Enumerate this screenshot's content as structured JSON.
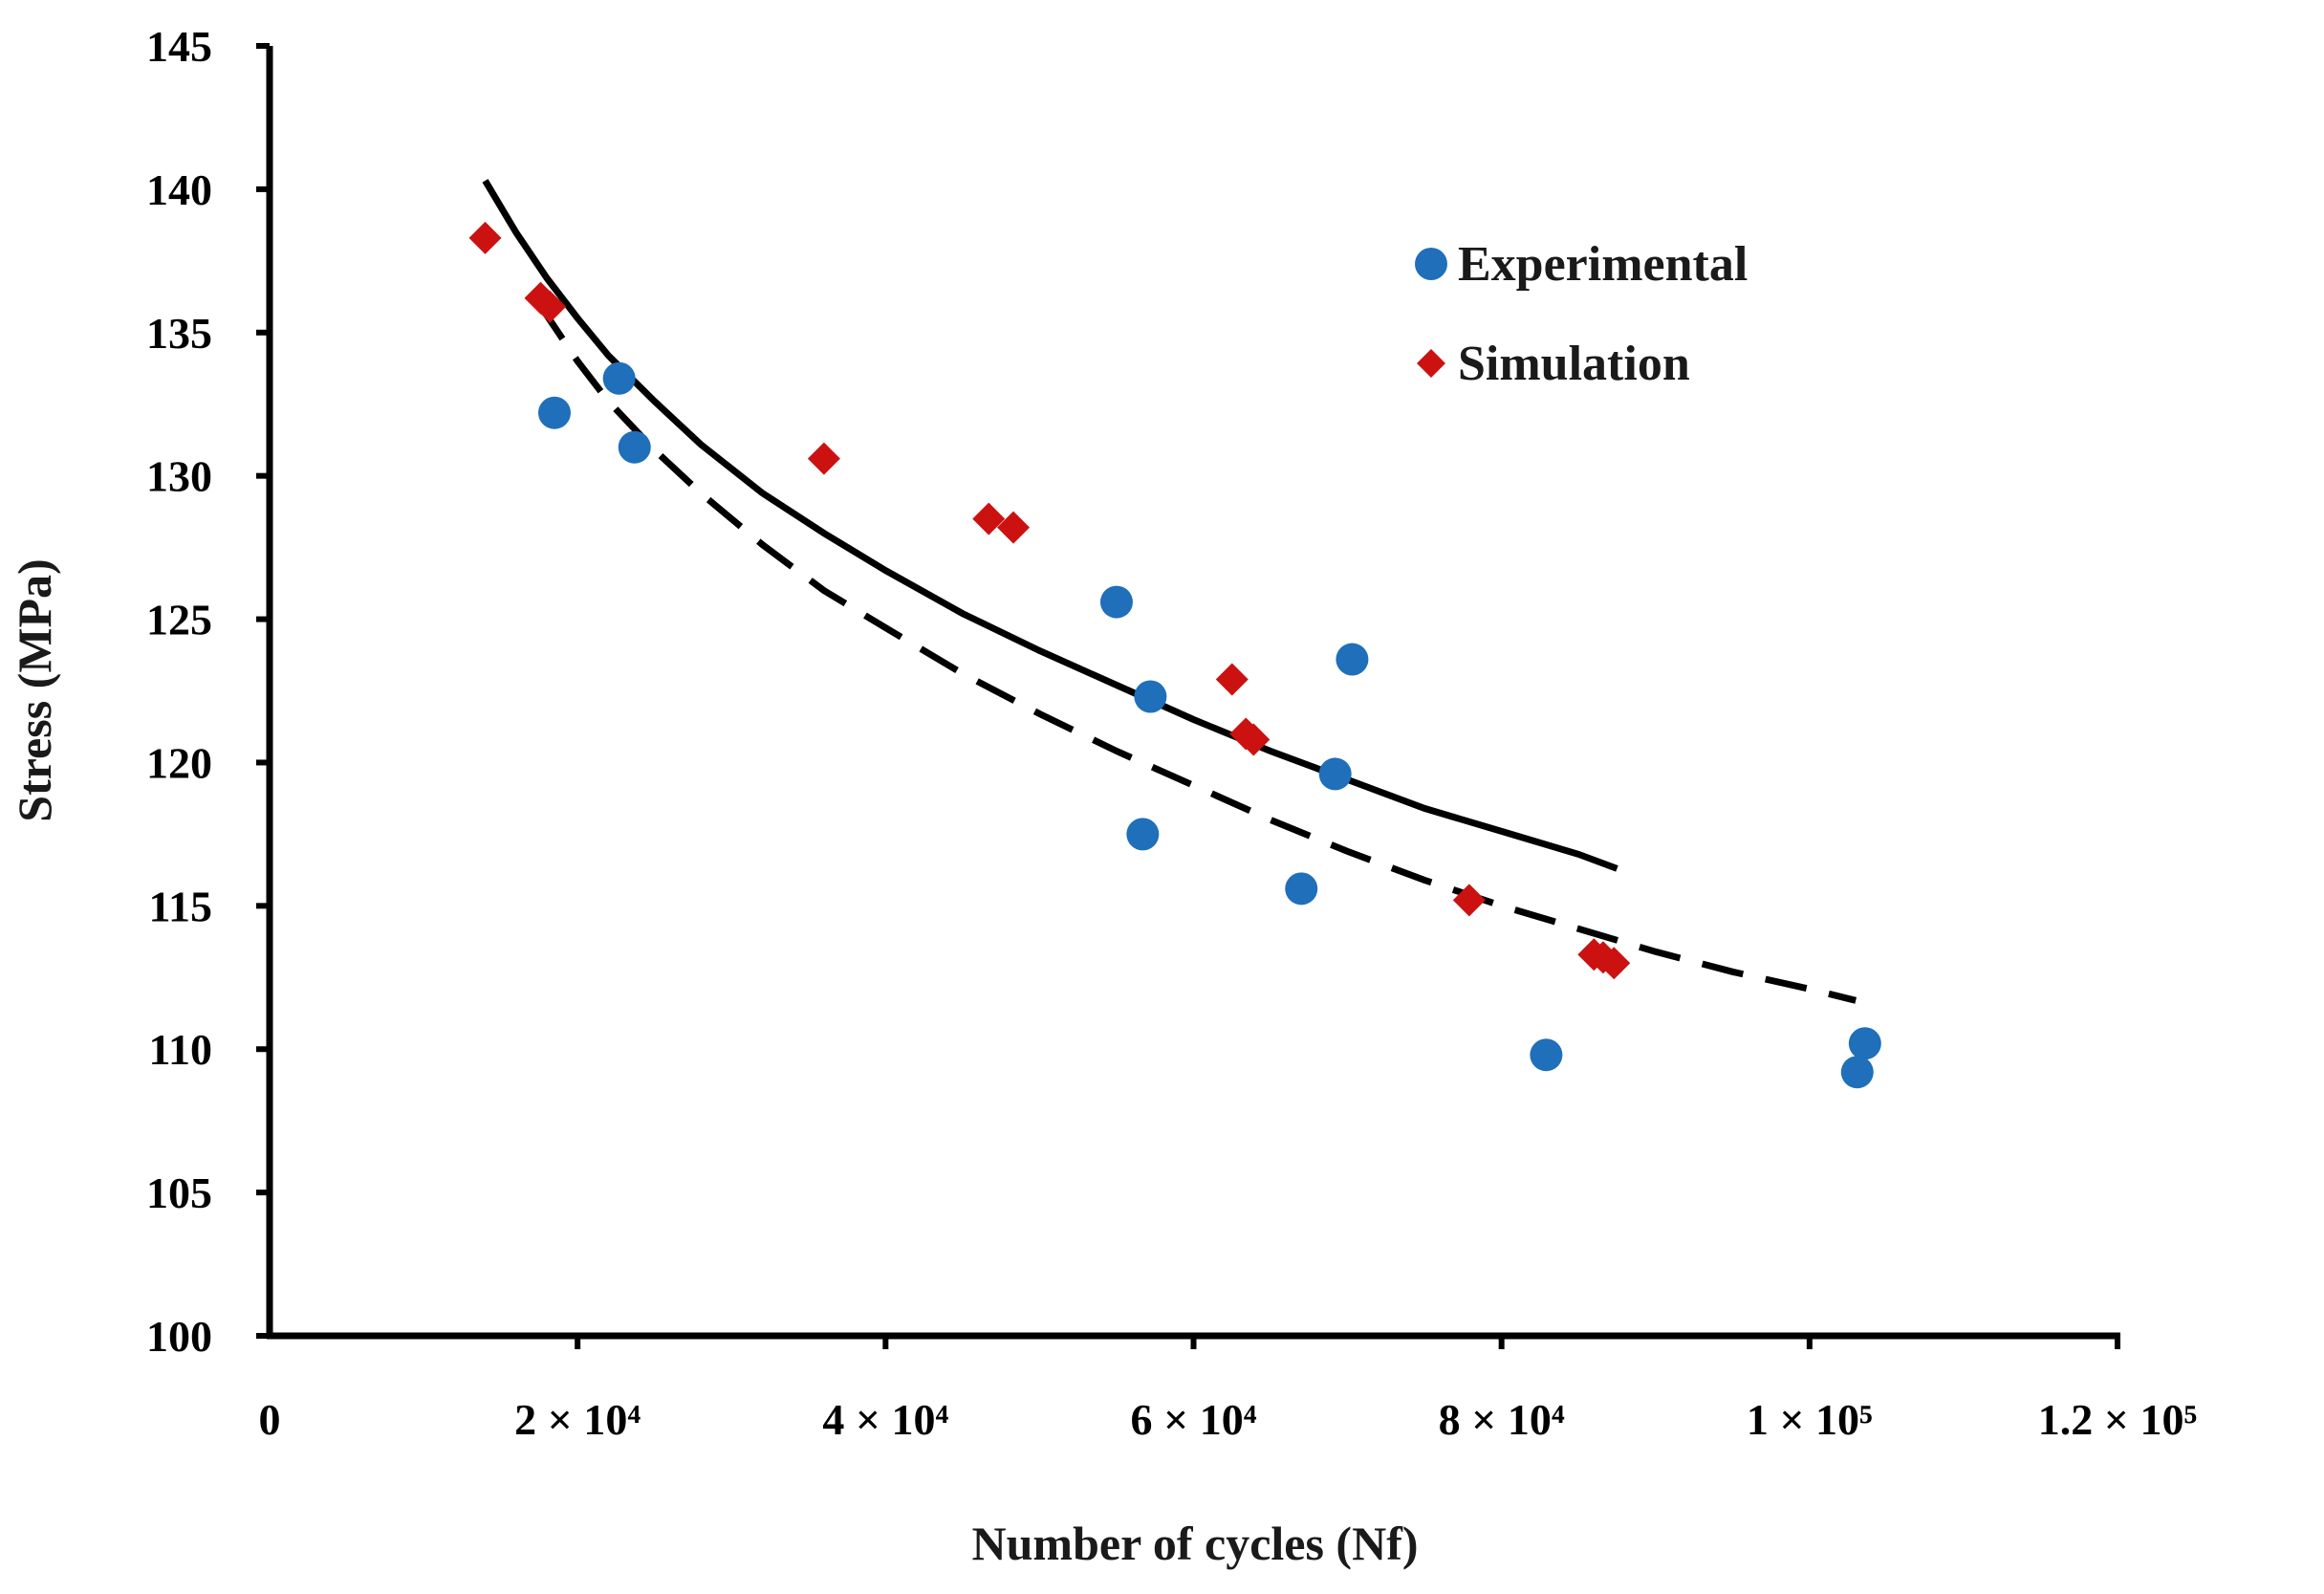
{
  "chart_data": {
    "type": "scatter",
    "xlabel": "Number of cycles (Nf)",
    "ylabel": "Stress (MPa)",
    "xlim": [
      0,
      120000
    ],
    "ylim": [
      100,
      145
    ],
    "x_ticks": [
      {
        "value": 0,
        "label": "0"
      },
      {
        "value": 20000,
        "label": "2 × 10⁴"
      },
      {
        "value": 40000,
        "label": "4 × 10⁴"
      },
      {
        "value": 60000,
        "label": "6 × 10⁴"
      },
      {
        "value": 80000,
        "label": "8 × 10⁴"
      },
      {
        "value": 100000,
        "label": "1 × 10⁵"
      },
      {
        "value": 120000,
        "label": "1.2 × 10⁵"
      }
    ],
    "y_ticks": [
      {
        "value": 100,
        "label": "100"
      },
      {
        "value": 105,
        "label": "105"
      },
      {
        "value": 110,
        "label": "110"
      },
      {
        "value": 115,
        "label": "115"
      },
      {
        "value": 120,
        "label": "120"
      },
      {
        "value": 125,
        "label": "125"
      },
      {
        "value": 130,
        "label": "130"
      },
      {
        "value": 135,
        "label": "135"
      },
      {
        "value": 140,
        "label": "140"
      },
      {
        "value": 145,
        "label": "145"
      }
    ],
    "grid": false,
    "legend_position": "top-right",
    "series": [
      {
        "name": "Experimental",
        "marker": "circle",
        "color": "#1f6fba",
        "points": [
          {
            "x": 22700,
            "y": 133.4
          },
          {
            "x": 18500,
            "y": 132.2
          },
          {
            "x": 23700,
            "y": 131.0
          },
          {
            "x": 55000,
            "y": 125.6
          },
          {
            "x": 57200,
            "y": 122.3
          },
          {
            "x": 70300,
            "y": 123.6
          },
          {
            "x": 69200,
            "y": 119.6
          },
          {
            "x": 56700,
            "y": 117.5
          },
          {
            "x": 67000,
            "y": 115.6
          },
          {
            "x": 82900,
            "y": 109.8
          },
          {
            "x": 103600,
            "y": 110.2
          },
          {
            "x": 103100,
            "y": 109.2
          }
        ]
      },
      {
        "name": "Simulation",
        "marker": "diamond",
        "color": "#cc1111",
        "points": [
          {
            "x": 14000,
            "y": 138.3
          },
          {
            "x": 17600,
            "y": 136.2
          },
          {
            "x": 18200,
            "y": 135.9
          },
          {
            "x": 36000,
            "y": 130.6
          },
          {
            "x": 46700,
            "y": 128.5
          },
          {
            "x": 48300,
            "y": 128.2
          },
          {
            "x": 62500,
            "y": 122.9
          },
          {
            "x": 63400,
            "y": 121.0
          },
          {
            "x": 63900,
            "y": 120.8
          },
          {
            "x": 77900,
            "y": 115.2
          },
          {
            "x": 86000,
            "y": 113.3
          },
          {
            "x": 86600,
            "y": 113.2
          },
          {
            "x": 87300,
            "y": 113.0
          }
        ]
      }
    ],
    "trendlines": [
      {
        "fit": "Experimental",
        "style": "solid",
        "color": "#000000",
        "points": [
          [
            14000,
            140.3
          ],
          [
            16000,
            138.5
          ],
          [
            18000,
            136.9
          ],
          [
            20000,
            135.5
          ],
          [
            22000,
            134.2
          ],
          [
            25000,
            132.6
          ],
          [
            28000,
            131.1
          ],
          [
            32000,
            129.4
          ],
          [
            36000,
            128.0
          ],
          [
            40000,
            126.7
          ],
          [
            45000,
            125.2
          ],
          [
            50000,
            123.9
          ],
          [
            55000,
            122.7
          ],
          [
            60000,
            121.5
          ],
          [
            65000,
            120.4
          ],
          [
            70000,
            119.4
          ],
          [
            75000,
            118.4
          ],
          [
            80000,
            117.6
          ],
          [
            85000,
            116.8
          ],
          [
            87500,
            116.3
          ]
        ]
      },
      {
        "fit": "Simulation",
        "style": "dashed",
        "color": "#000000",
        "points": [
          [
            17500,
            136.0
          ],
          [
            20000,
            134.0
          ],
          [
            22000,
            132.6
          ],
          [
            25000,
            130.9
          ],
          [
            28000,
            129.4
          ],
          [
            32000,
            127.6
          ],
          [
            36000,
            126.0
          ],
          [
            40000,
            124.7
          ],
          [
            45000,
            123.1
          ],
          [
            50000,
            121.7
          ],
          [
            55000,
            120.4
          ],
          [
            60000,
            119.2
          ],
          [
            65000,
            118.0
          ],
          [
            70000,
            116.9
          ],
          [
            75000,
            115.9
          ],
          [
            80000,
            115.0
          ],
          [
            85000,
            114.2
          ],
          [
            90000,
            113.4
          ],
          [
            95000,
            112.7
          ],
          [
            100000,
            112.1
          ],
          [
            103000,
            111.7
          ]
        ]
      }
    ]
  }
}
